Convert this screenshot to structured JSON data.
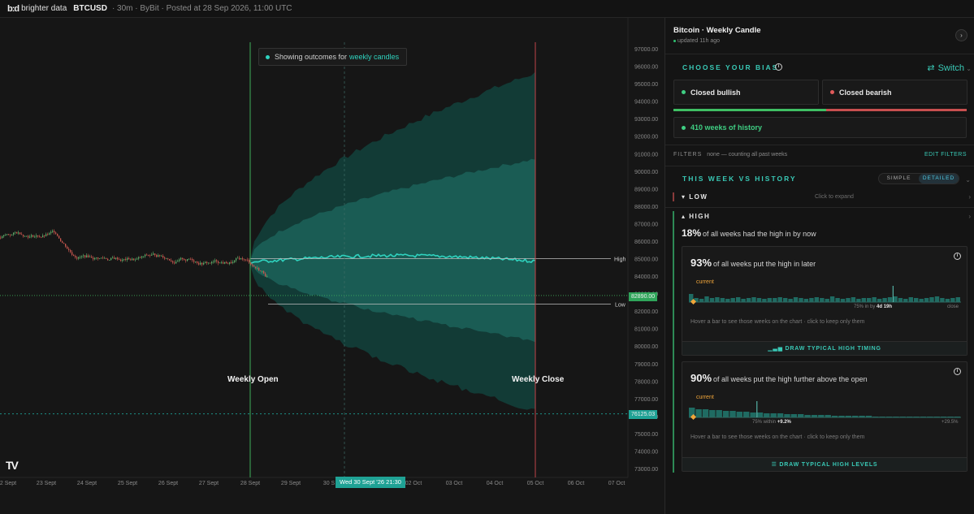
{
  "topbar": {
    "logo_mark": "b:d",
    "brand": "brighter data",
    "symbol": "BTCUSD",
    "meta": "· 30m · ByBit · Posted at 28 Sep 2026, 11:00 UTC"
  },
  "chart": {
    "outcome_prefix": "Showing outcomes for",
    "outcome_accent": "weekly candles",
    "weekly_open_label": "Weekly Open",
    "weekly_close_label": "Weekly Close",
    "high_label": "High",
    "low_label": "Low",
    "current_price_tag": "82890.00",
    "lower_price_tag": "76125.03",
    "crosshair_date": "Wed 30 Sept '26 21:30",
    "price_axis": [
      "97000.00",
      "96000.00",
      "95000.00",
      "94000.00",
      "93000.00",
      "92000.00",
      "91000.00",
      "90000.00",
      "89000.00",
      "88000.00",
      "87000.00",
      "86000.00",
      "85000.00",
      "84000.00",
      "83000.00",
      "82000.00",
      "81000.00",
      "80000.00",
      "79000.00",
      "78000.00",
      "77000.00",
      "76000.00",
      "75000.00",
      "74000.00",
      "73000.00"
    ],
    "date_axis": [
      "2 Sept",
      "23 Sept",
      "24 Sept",
      "25 Sept",
      "26 Sept",
      "27 Sept",
      "28 Sept",
      "29 Sept",
      "30 S",
      "02 Oct",
      "03 Oct",
      "04 Oct",
      "05 Oct",
      "06 Oct",
      "07 Oct"
    ],
    "tv_logo": "TV",
    "colors": {
      "accent": "#2fd3bf",
      "band_outer": "#123b36",
      "band_inner": "#1a5c54",
      "open_line": "#3fae5a",
      "close_line": "#c0444a"
    }
  },
  "panel": {
    "title": "Bitcoin · Weekly Candle",
    "updated": "updated 11h ago",
    "choose_bias": "CHOOSE YOUR BIAS",
    "switch_label": "Switch",
    "bullish": "Closed bullish",
    "bearish": "Closed bearish",
    "history": "410 weeks of history",
    "filters_label": "FILTERS",
    "filters_value": "none — counting all past weeks",
    "edit_filters": "EDIT FILTERS",
    "this_week": "THIS WEEK VS HISTORY",
    "toggle_simple": "SIMPLE",
    "toggle_detailed": "DETAILED",
    "low_row": "LOW",
    "low_hint": "Click to expand",
    "high_row": "HIGH",
    "high_stat_pct": "18%",
    "high_stat_text": "of all weeks had the high in by now",
    "card1": {
      "pct": "93%",
      "text": "of all weeks put the high in later",
      "current": "current",
      "note_prefix": "75% in by",
      "note_bold": "4d 19h",
      "note_end": "close",
      "hint": "Hover a bar to see those weeks on the chart · click to keep only them",
      "button": "DRAW TYPICAL HIGH TIMING"
    },
    "card2": {
      "pct": "90%",
      "text": "of all weeks put the high further above the open",
      "current": "current",
      "note_prefix": "75% within",
      "note_bold": "+9.2%",
      "note_end": "+29.5%",
      "hint": "Hover a bar to see those weeks on the chart · click to keep only them",
      "button": "DRAW TYPICAL HIGH LEVELS"
    },
    "colors": {
      "bullish": "#3fcf83",
      "bearish": "#e05a5a",
      "accent": "#39c9b6",
      "current": "#f0a53a"
    }
  }
}
